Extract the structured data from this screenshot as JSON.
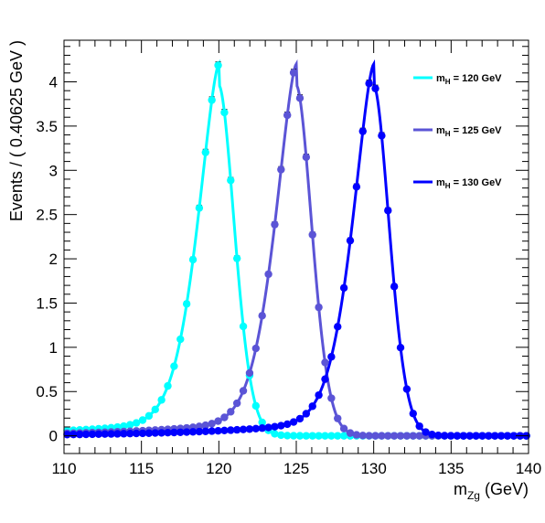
{
  "chart_data": {
    "type": "line",
    "title": "",
    "xlabel": "m",
    "xlabel_sub": "Zg",
    "xlabel_unit": " (GeV)",
    "ylabel": "Events / ( 0.40625 GeV )",
    "xlim": [
      110,
      140
    ],
    "ylim": [
      -0.2,
      4.47
    ],
    "x_ticks": [
      110,
      115,
      120,
      125,
      130,
      135,
      140
    ],
    "y_ticks": [
      0,
      0.5,
      1,
      1.5,
      2,
      2.5,
      3,
      3.5,
      4
    ],
    "x_tick_labels": [
      "110",
      "115",
      "120",
      "125",
      "130",
      "135",
      "140"
    ],
    "y_tick_labels": [
      "0",
      "0.5",
      "1",
      "1.5",
      "2",
      "2.5",
      "3",
      "3.5",
      "4"
    ],
    "bin_width": 0.40625,
    "grid": false,
    "legend_position": "top-right",
    "series": [
      {
        "name": "m",
        "name_sub": "H",
        "name_suffix": " = 120 GeV",
        "mass": 120,
        "color": "#00ffff",
        "peak": 4.2
      },
      {
        "name": "m",
        "name_sub": "H",
        "name_suffix": " = 125 GeV",
        "mass": 125,
        "color": "#5b54d6",
        "peak": 4.2
      },
      {
        "name": "m",
        "name_sub": "H",
        "name_suffix": " = 130 GeV",
        "mass": 130,
        "color": "#0000ff",
        "peak": 4.2
      }
    ]
  }
}
